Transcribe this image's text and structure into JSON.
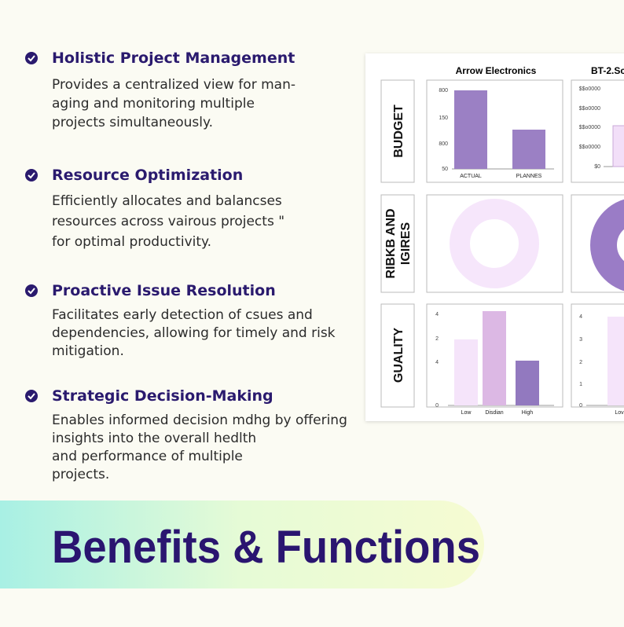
{
  "features": [
    {
      "title": "Holistic Project Management",
      "lines": [
        "Provides a centralized view for  man-",
        "aging and monitoring multiple",
        "projects simultaneously."
      ]
    },
    {
      "title": "Resource Optimization",
      "lines": [
        "Efficiently allocates and balancses",
        "resources across vairous projects \"",
        "for optimal productivity."
      ]
    },
    {
      "title": "Proactive Issue Resolution",
      "lines": [
        "Facilitates early detection of csues and",
        "dependencies, allowing for timely and risk",
        "mitigation."
      ]
    },
    {
      "title": "Strategic Decision-Making",
      "lines": [
        "Enables informed decision mdhg by offering",
        "insights into the overall hedlth",
        "and performance of multiple",
        "projects."
      ]
    }
  ],
  "dashboard": {
    "columns": [
      "Arrow Electronics",
      "BT-2.Sc"
    ],
    "rows": [
      [
        "BUDGET"
      ],
      [
        "RIBKB AND",
        "IGIRES"
      ],
      [
        "GUALITY"
      ]
    ],
    "budget": {
      "ticks": [
        "800",
        "150",
        "800",
        "50"
      ],
      "labels": [
        "ACTUAL",
        "PLANNES"
      ]
    },
    "budget2": {
      "ticks": [
        "$$o0000",
        "$$o0000",
        "$$o0000",
        "$$o0000",
        "$0"
      ]
    },
    "quality": {
      "ticks": [
        "4",
        "2",
        "4",
        "0"
      ],
      "labels": [
        "Low",
        "Disdian",
        "High"
      ]
    },
    "quality2": {
      "ticks": [
        "4",
        "3",
        "2",
        "1",
        "0"
      ],
      "labels": [
        "Lov"
      ]
    }
  },
  "banner": {
    "title": "Benefits & Functions"
  }
}
